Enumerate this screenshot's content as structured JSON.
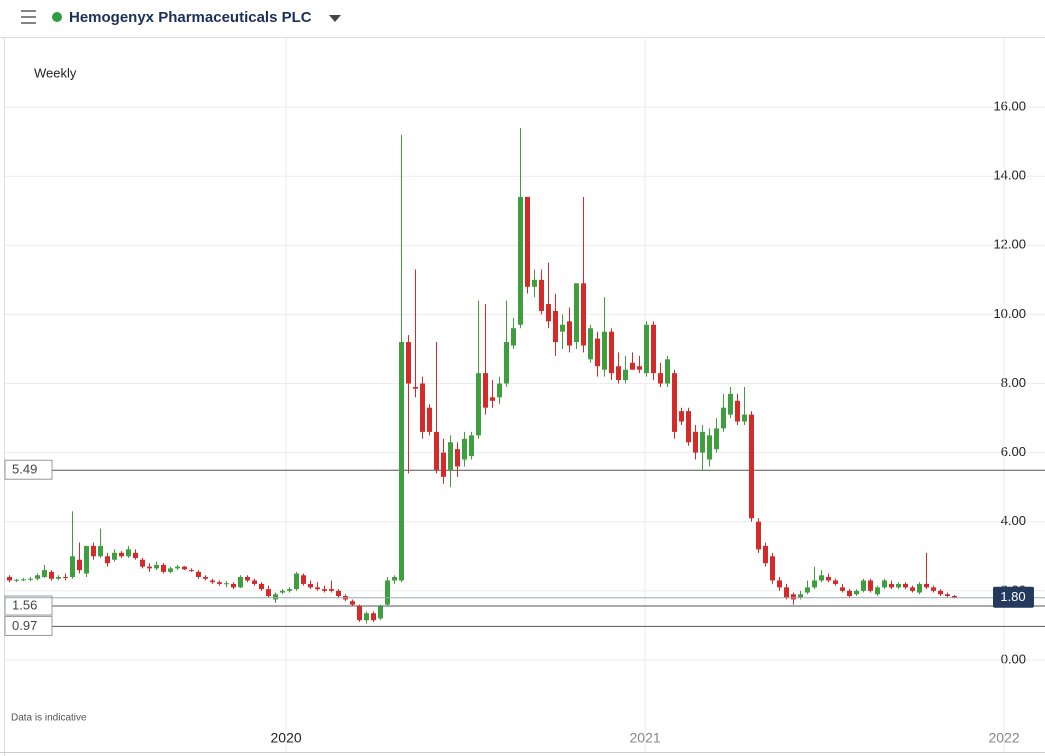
{
  "chart_data": {
    "type": "candlestick",
    "title": "Hemogenyx Pharmaceuticals PLC",
    "interval": "Weekly",
    "note": "Data is indicative",
    "up_color": "#3f9f3f",
    "down_color": "#d42a2a",
    "x": [
      2019.228,
      2019.248,
      2019.267,
      2019.287,
      2019.306,
      2019.326,
      2019.345,
      2019.365,
      2019.384,
      2019.404,
      2019.423,
      2019.443,
      2019.462,
      2019.482,
      2019.501,
      2019.521,
      2019.54,
      2019.56,
      2019.579,
      2019.599,
      2019.618,
      2019.638,
      2019.657,
      2019.677,
      2019.696,
      2019.716,
      2019.735,
      2019.755,
      2019.774,
      2019.794,
      2019.813,
      2019.833,
      2019.852,
      2019.872,
      2019.891,
      2019.911,
      2019.93,
      2019.95,
      2019.969,
      2019.989,
      2020.008,
      2020.028,
      2020.047,
      2020.067,
      2020.086,
      2020.106,
      2020.125,
      2020.145,
      2020.164,
      2020.184,
      2020.203,
      2020.223,
      2020.242,
      2020.262,
      2020.281,
      2020.301,
      2020.32,
      2020.34,
      2020.359,
      2020.379,
      2020.398,
      2020.418,
      2020.437,
      2020.457,
      2020.476,
      2020.496,
      2020.515,
      2020.535,
      2020.554,
      2020.574,
      2020.593,
      2020.613,
      2020.632,
      2020.652,
      2020.671,
      2020.691,
      2020.71,
      2020.73,
      2020.749,
      2020.769,
      2020.788,
      2020.808,
      2020.827,
      2020.847,
      2020.866,
      2020.886,
      2020.905,
      2020.925,
      2020.944,
      2020.964,
      2020.983,
      2021.003,
      2021.022,
      2021.042,
      2021.061,
      2021.081,
      2021.1,
      2021.12,
      2021.139,
      2021.159,
      2021.178,
      2021.198,
      2021.217,
      2021.237,
      2021.256,
      2021.276,
      2021.295,
      2021.315,
      2021.334,
      2021.354,
      2021.373,
      2021.393,
      2021.412,
      2021.432,
      2021.451,
      2021.471,
      2021.49,
      2021.51,
      2021.529,
      2021.549,
      2021.568,
      2021.588,
      2021.607,
      2021.627,
      2021.646,
      2021.666,
      2021.685,
      2021.705,
      2021.724,
      2021.744,
      2021.763,
      2021.783,
      2021.802,
      2021.822,
      2021.841,
      2021.861
    ],
    "open": [
      2.4,
      2.3,
      2.32,
      2.33,
      2.35,
      2.4,
      2.55,
      2.35,
      2.4,
      2.4,
      2.9,
      2.5,
      3.3,
      3.0,
      3.0,
      2.9,
      3.1,
      3.0,
      3.1,
      2.9,
      2.7,
      2.65,
      2.75,
      2.55,
      2.65,
      2.7,
      2.6,
      2.55,
      2.4,
      2.3,
      2.25,
      2.2,
      2.2,
      2.1,
      2.4,
      2.3,
      2.2,
      2.05,
      1.75,
      1.95,
      2.0,
      2.05,
      2.45,
      2.2,
      2.1,
      2.05,
      2.05,
      2.0,
      1.85,
      1.7,
      1.55,
      1.15,
      1.35,
      1.2,
      1.6,
      2.3,
      2.3,
      9.2,
      7.9,
      8.0,
      7.3,
      6.6,
      6.0,
      5.5,
      6.1,
      5.8,
      5.9,
      6.5,
      8.3,
      7.6,
      7.6,
      8.0,
      9.1,
      9.7,
      13.4,
      10.8,
      11.0,
      10.3,
      10.1,
      9.5,
      9.8,
      9.2,
      10.9,
      8.7,
      9.3,
      8.4,
      9.5,
      8.5,
      8.1,
      8.6,
      8.5,
      8.3,
      9.7,
      8.3,
      8.0,
      8.3,
      7.2,
      7.2,
      6.6,
      6.0,
      5.8,
      6.1,
      6.7,
      7.1,
      7.5,
      6.9,
      7.1,
      4.0,
      3.3,
      3.0,
      2.3,
      2.1,
      1.9,
      1.8,
      1.95,
      2.1,
      2.3,
      2.4,
      2.3,
      2.1,
      2.0,
      1.9,
      2.0,
      2.3,
      1.9,
      2.1,
      2.2,
      2.1,
      2.2,
      2.1,
      1.95,
      2.2,
      2.1,
      2.0,
      1.9,
      1.85
    ],
    "high": [
      2.45,
      2.35,
      2.38,
      2.4,
      2.5,
      2.75,
      2.6,
      2.45,
      2.5,
      4.3,
      3.4,
      3.3,
      3.4,
      3.8,
      3.1,
      3.2,
      3.15,
      3.3,
      3.2,
      2.95,
      2.8,
      2.85,
      2.8,
      2.7,
      2.75,
      2.72,
      2.65,
      2.6,
      2.45,
      2.35,
      2.3,
      2.28,
      2.25,
      2.45,
      2.45,
      2.35,
      2.25,
      2.15,
      1.95,
      2.05,
      2.1,
      2.55,
      2.5,
      2.3,
      2.25,
      2.15,
      2.3,
      2.05,
      1.9,
      1.75,
      1.6,
      1.4,
      1.4,
      1.6,
      2.4,
      2.45,
      15.2,
      9.4,
      11.3,
      8.2,
      7.4,
      9.2,
      6.4,
      6.5,
      6.3,
      6.6,
      6.6,
      10.4,
      10.3,
      8.1,
      8.2,
      10.4,
      9.9,
      15.4,
      13.4,
      11.3,
      11.3,
      11.5,
      10.6,
      10.0,
      10.2,
      10.9,
      13.4,
      9.7,
      9.5,
      10.5,
      9.6,
      8.9,
      8.8,
      8.9,
      8.8,
      9.8,
      9.8,
      8.6,
      8.8,
      8.4,
      7.3,
      7.3,
      6.8,
      6.8,
      6.7,
      7.0,
      7.7,
      7.9,
      7.7,
      7.9,
      7.2,
      4.1,
      3.4,
      3.1,
      2.4,
      2.2,
      1.95,
      2.0,
      2.3,
      2.7,
      2.6,
      2.5,
      2.35,
      2.2,
      2.05,
      2.05,
      2.35,
      2.35,
      2.15,
      2.35,
      2.3,
      2.25,
      2.25,
      2.15,
      2.25,
      3.1,
      2.15,
      2.05,
      1.95,
      1.88
    ],
    "low": [
      2.25,
      2.25,
      2.28,
      2.28,
      2.3,
      2.38,
      2.3,
      2.3,
      2.3,
      2.35,
      2.5,
      2.4,
      2.9,
      2.95,
      2.7,
      2.85,
      2.95,
      2.95,
      2.9,
      2.65,
      2.55,
      2.6,
      2.5,
      2.5,
      2.6,
      2.6,
      2.55,
      2.35,
      2.3,
      2.2,
      2.15,
      2.1,
      2.05,
      2.08,
      2.25,
      2.15,
      2.0,
      1.8,
      1.65,
      1.9,
      1.95,
      2.0,
      2.15,
      2.05,
      2.0,
      1.95,
      1.95,
      1.8,
      1.7,
      1.55,
      1.1,
      1.05,
      1.1,
      1.15,
      1.55,
      2.2,
      2.25,
      5.4,
      7.6,
      6.4,
      6.5,
      5.4,
      5.1,
      5.0,
      5.3,
      5.6,
      5.8,
      6.4,
      7.1,
      7.3,
      7.4,
      7.9,
      9.0,
      9.6,
      10.6,
      10.5,
      10.0,
      9.6,
      8.8,
      9.0,
      8.9,
      9.0,
      8.9,
      8.6,
      8.2,
      8.2,
      8.1,
      8.0,
      8.0,
      8.4,
      8.3,
      8.2,
      8.1,
      7.9,
      7.9,
      6.4,
      6.8,
      6.2,
      5.8,
      5.5,
      5.6,
      6.0,
      6.6,
      7.0,
      6.8,
      6.8,
      4.0,
      3.1,
      2.7,
      2.2,
      2.0,
      1.75,
      1.6,
      1.75,
      1.9,
      2.05,
      2.25,
      2.25,
      2.15,
      1.95,
      1.8,
      1.85,
      1.95,
      1.95,
      1.85,
      2.05,
      2.05,
      2.05,
      2.05,
      1.95,
      1.9,
      2.05,
      1.95,
      1.85,
      1.8,
      1.78
    ],
    "close": [
      2.3,
      2.32,
      2.33,
      2.35,
      2.45,
      2.6,
      2.35,
      2.4,
      2.38,
      3.0,
      2.6,
      3.3,
      3.0,
      3.3,
      2.8,
      3.1,
      3.0,
      3.2,
      2.95,
      2.7,
      2.65,
      2.75,
      2.55,
      2.65,
      2.7,
      2.62,
      2.58,
      2.4,
      2.35,
      2.25,
      2.2,
      2.22,
      2.1,
      2.4,
      2.3,
      2.2,
      2.05,
      1.85,
      1.9,
      2.0,
      2.05,
      2.5,
      2.2,
      2.1,
      2.05,
      2.0,
      2.0,
      1.85,
      1.75,
      1.6,
      1.15,
      1.35,
      1.15,
      1.55,
      2.3,
      2.4,
      9.2,
      8.0,
      7.85,
      6.6,
      6.6,
      5.5,
      5.3,
      6.3,
      5.6,
      6.4,
      6.5,
      8.3,
      7.3,
      7.5,
      8.0,
      9.2,
      9.6,
      13.4,
      10.8,
      11.0,
      10.1,
      9.8,
      9.2,
      9.7,
      9.1,
      10.9,
      9.1,
      9.6,
      8.5,
      9.5,
      8.3,
      8.1,
      8.4,
      8.4,
      8.4,
      9.7,
      8.3,
      8.0,
      8.7,
      6.6,
      6.9,
      6.3,
      6.0,
      6.6,
      6.5,
      6.7,
      7.3,
      7.7,
      6.9,
      7.1,
      4.1,
      3.2,
      2.8,
      2.3,
      2.1,
      1.8,
      1.75,
      1.9,
      2.1,
      2.3,
      2.45,
      2.3,
      2.2,
      2.0,
      1.85,
      2.0,
      2.3,
      2.0,
      2.1,
      2.3,
      2.1,
      2.2,
      2.1,
      2.0,
      2.2,
      2.1,
      2.0,
      1.9,
      1.85,
      1.8
    ],
    "xlim": [
      2019.217,
      2022.114
    ],
    "xticks": [
      2020,
      2021,
      2022
    ],
    "ylim": [
      -1.97,
      18.0
    ],
    "yticks": [
      {
        "value": 0,
        "label": "0.00"
      },
      {
        "value": 2,
        "label": "2.00"
      },
      {
        "value": 4,
        "label": "4.00"
      },
      {
        "value": 6,
        "label": "6.00"
      },
      {
        "value": 8,
        "label": "8.00"
      },
      {
        "value": 10,
        "label": "10.00"
      },
      {
        "value": 12,
        "label": "12.00"
      },
      {
        "value": 14,
        "label": "14.00"
      },
      {
        "value": 16,
        "label": "16.00"
      }
    ],
    "price_lines": [
      5.49,
      1.56,
      0.97
    ],
    "last_price": {
      "value": 1.8,
      "label": "1.80"
    },
    "grid": true
  }
}
